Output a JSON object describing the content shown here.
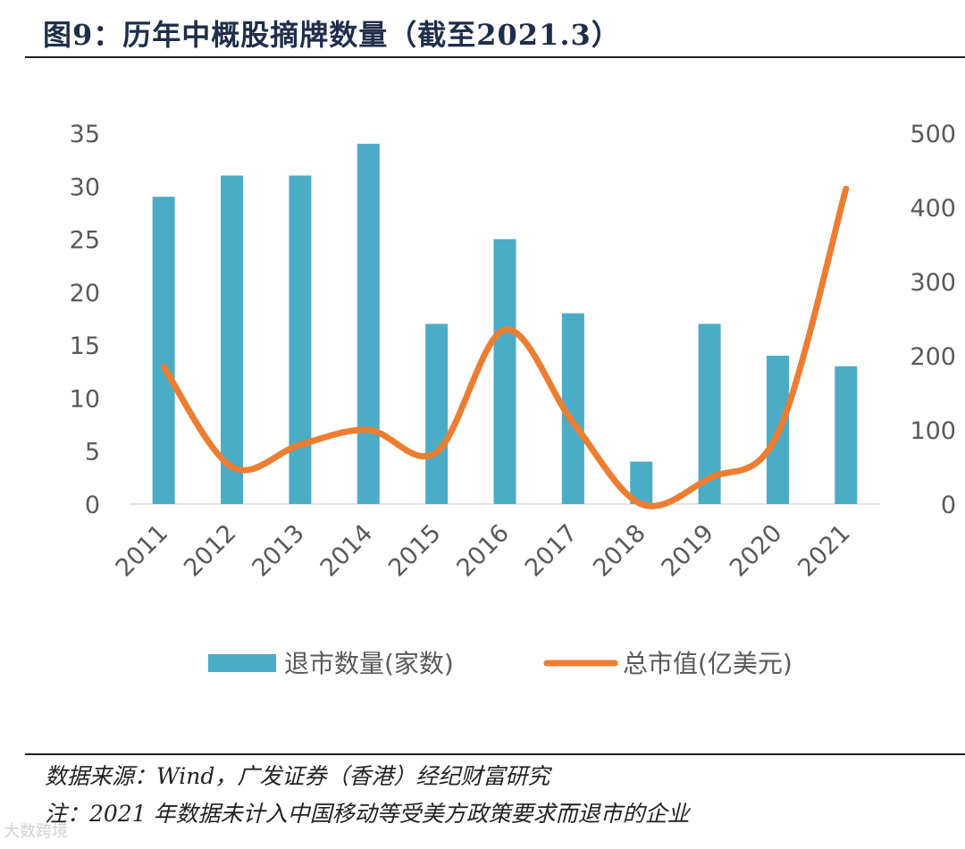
{
  "header": {
    "title": "图9：历年中概股摘牌数量（截至2021.3）"
  },
  "footer": {
    "source": "数据来源：Wind，广发证券（香港）经纪财富研究",
    "note": "注：2021 年数据未计入中国移动等受美方政策要求而退市的企业",
    "watermark": "大数跨境"
  },
  "colors": {
    "bar": "#4BACC6",
    "line": "#ED7D31"
  },
  "chart_data": {
    "type": "bar",
    "categories": [
      "2011",
      "2012",
      "2013",
      "2014",
      "2015",
      "2016",
      "2017",
      "2018",
      "2019",
      "2020",
      "2021"
    ],
    "series": [
      {
        "name": "退市数量(家数)",
        "type": "bar",
        "axis": "left",
        "values": [
          29,
          31,
          31,
          34,
          17,
          25,
          18,
          4,
          17,
          14,
          13
        ]
      },
      {
        "name": "总市值(亿美元)",
        "type": "line",
        "smooth": true,
        "axis": "right",
        "values": [
          185,
          50,
          80,
          100,
          70,
          235,
          110,
          0,
          35,
          95,
          425
        ]
      }
    ],
    "y_left": {
      "ylim": [
        0,
        35
      ],
      "ticks": [
        "0",
        "5",
        "10",
        "15",
        "20",
        "25",
        "30",
        "35"
      ]
    },
    "y_right": {
      "ylim": [
        0,
        500
      ],
      "ticks": [
        "0",
        "100",
        "200",
        "300",
        "400",
        "500"
      ]
    },
    "legend_position": "bottom"
  }
}
